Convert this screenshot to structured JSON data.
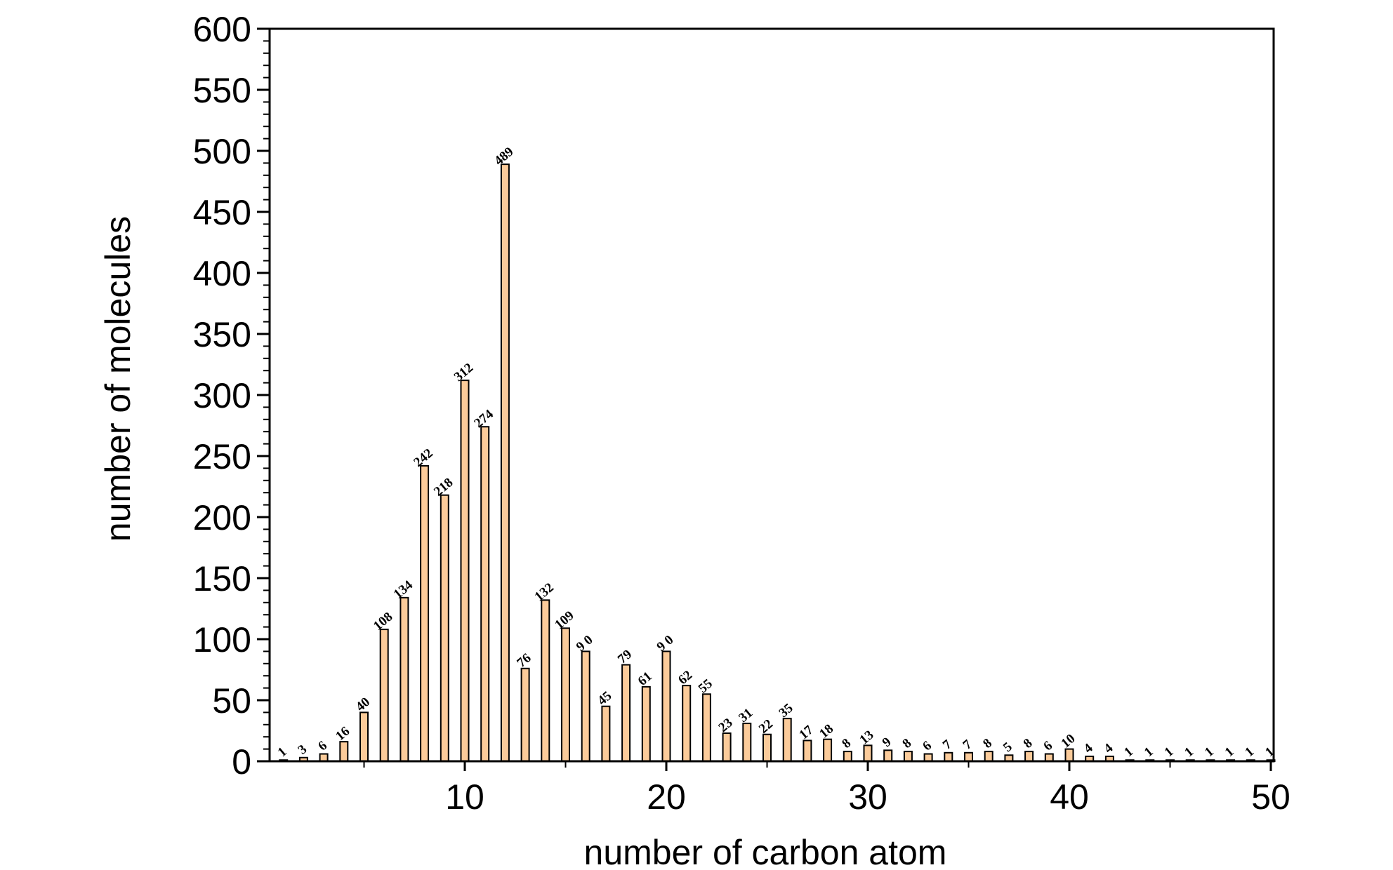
{
  "chart_data": {
    "type": "bar",
    "title": "",
    "xlabel": "number of carbon atom",
    "ylabel": "number of molecules",
    "x": [
      1,
      2,
      3,
      4,
      5,
      6,
      7,
      8,
      9,
      10,
      11,
      12,
      13,
      14,
      15,
      16,
      17,
      18,
      19,
      20,
      21,
      22,
      23,
      24,
      25,
      26,
      27,
      28,
      29,
      30,
      31,
      32,
      33,
      34,
      35,
      36,
      37,
      38,
      39,
      40,
      41,
      42,
      43,
      44,
      45,
      46,
      47,
      48,
      49,
      50
    ],
    "values": [
      1,
      3,
      6,
      16,
      40,
      108,
      134,
      242,
      218,
      312,
      274,
      489,
      76,
      132,
      109,
      90,
      45,
      79,
      61,
      90,
      62,
      55,
      23,
      31,
      22,
      35,
      17,
      18,
      8,
      13,
      9,
      8,
      6,
      7,
      7,
      8,
      5,
      8,
      6,
      10,
      4,
      4,
      1,
      1,
      1,
      1,
      1,
      1,
      1,
      1
    ],
    "data_labels": [
      "1",
      "3",
      "6",
      "16",
      "40",
      "108",
      "134",
      "242",
      "218",
      "312",
      "274",
      "489",
      "76",
      "132",
      "109",
      "9 0",
      "45",
      "79",
      "61",
      "9 0",
      "62",
      "55",
      "23",
      "31",
      "22",
      "35",
      "17",
      "18",
      "8",
      "13",
      "9",
      "8",
      "6",
      "7",
      "7",
      "8",
      "5",
      "8",
      "6",
      "10",
      "4",
      "4",
      "1",
      "1",
      "1",
      "1",
      "1",
      "1",
      "1",
      "1"
    ],
    "xlim": [
      0,
      50
    ],
    "ylim": [
      0,
      600
    ],
    "x_ticks": [
      "10",
      "20",
      "30",
      "40",
      "50"
    ],
    "y_ticks": [
      "0",
      "50",
      "100",
      "150",
      "200",
      "250",
      "300",
      "350",
      "400",
      "450",
      "500",
      "550",
      "600"
    ],
    "bar_color": "#FBCB9A",
    "grid": false,
    "legend": "none"
  }
}
